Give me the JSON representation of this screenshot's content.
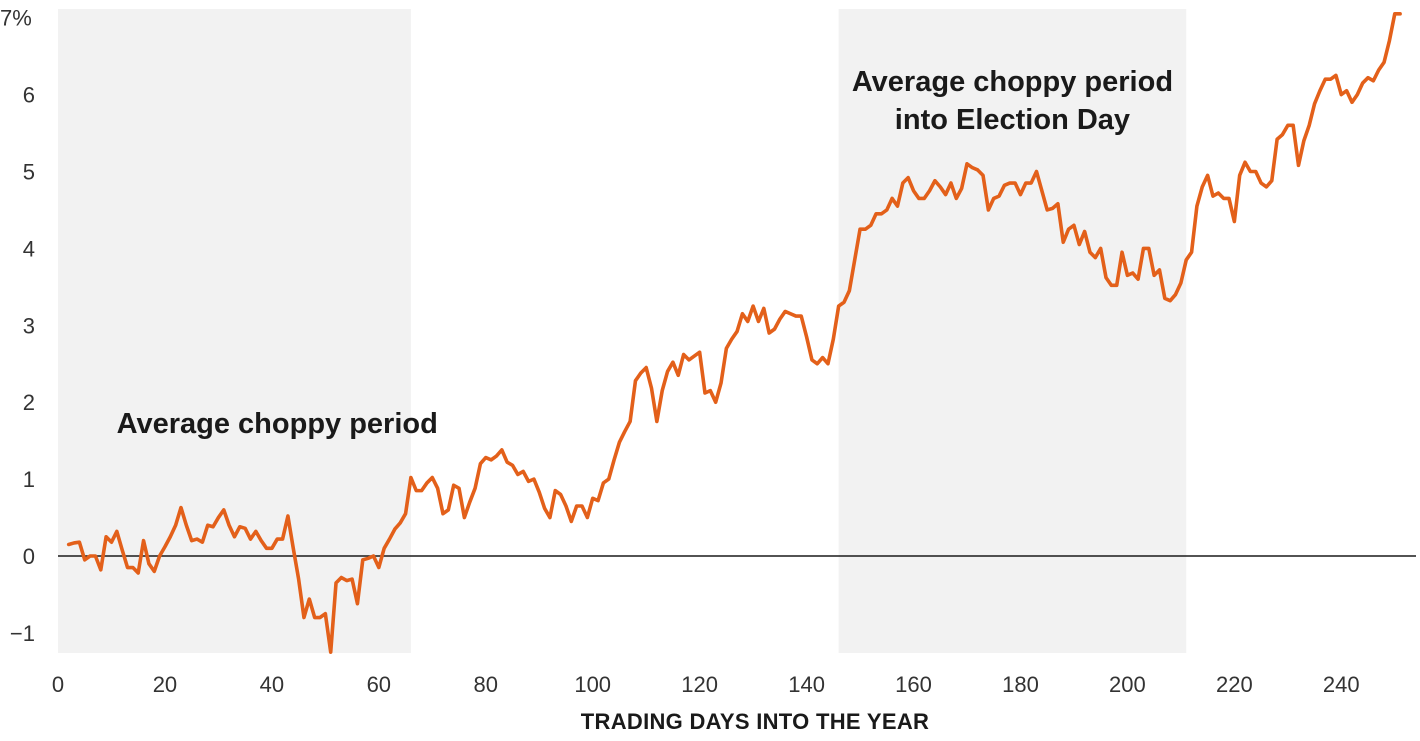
{
  "chart_data": {
    "type": "line",
    "xlabel": "TRADING DAYS INTO THE YEAR",
    "ylabel": "",
    "xlim": [
      0,
      252
    ],
    "ylim": [
      -1.25,
      7.1
    ],
    "x_ticks": [
      0,
      20,
      40,
      60,
      80,
      100,
      120,
      140,
      160,
      180,
      200,
      220,
      240
    ],
    "y_ticks": [
      {
        "value": -1,
        "label": "−1"
      },
      {
        "value": 0,
        "label": "0"
      },
      {
        "value": 1,
        "label": "1"
      },
      {
        "value": 2,
        "label": "2"
      },
      {
        "value": 3,
        "label": "3"
      },
      {
        "value": 4,
        "label": "4"
      },
      {
        "value": 5,
        "label": "5"
      },
      {
        "value": 6,
        "label": "6"
      },
      {
        "value": 7,
        "label": "7%"
      }
    ],
    "line_color": "#e3601a",
    "shade_color": "#f2f2f2",
    "shaded_periods": [
      {
        "x0": 0,
        "x1": 66,
        "label_lines": [
          "Average choppy period"
        ],
        "label_x": 41,
        "label_y": 1.6
      },
      {
        "x0": 146,
        "x1": 211,
        "label_lines": [
          "Average choppy period",
          "into Election Day"
        ],
        "label_x": 178.5,
        "label_y": 6.05
      }
    ],
    "series": [
      {
        "x": [
          2,
          3,
          4,
          5,
          6,
          7,
          8,
          9,
          10,
          11,
          12,
          13,
          14,
          15,
          16,
          17,
          18,
          19,
          20,
          21,
          22,
          23,
          24,
          25,
          26,
          27,
          28,
          29,
          30,
          31,
          32,
          33,
          34,
          35,
          36,
          37,
          38,
          39,
          40,
          41,
          42,
          43,
          44,
          45,
          46,
          47,
          48,
          49,
          50,
          51,
          52,
          53,
          54,
          55,
          56,
          57,
          58,
          59,
          60,
          61,
          62,
          63,
          64,
          65,
          66,
          67,
          68,
          69,
          70,
          71,
          72,
          73,
          74,
          75,
          76,
          77,
          78,
          79,
          80,
          81,
          82,
          83,
          84,
          85,
          86,
          87,
          88,
          89,
          90,
          91,
          92,
          93,
          94,
          95,
          96,
          97,
          98,
          99,
          100,
          101,
          102,
          103,
          104,
          105,
          106,
          107,
          108,
          109,
          110,
          111,
          112,
          113,
          114,
          115,
          116,
          117,
          118,
          119,
          120,
          121,
          122,
          123,
          124,
          125,
          126,
          127,
          128,
          129,
          130,
          131,
          132,
          133,
          134,
          135,
          136,
          137,
          138,
          139,
          140,
          141,
          142,
          143,
          144,
          145,
          146,
          147,
          148,
          149,
          150,
          151,
          152,
          153,
          154,
          155,
          156,
          157,
          158,
          159,
          160,
          161,
          162,
          163,
          164,
          165,
          166,
          167,
          168,
          169,
          170,
          171,
          172,
          173,
          174,
          175,
          176,
          177,
          178,
          179,
          180,
          181,
          182,
          183,
          184,
          185,
          186,
          187,
          188,
          189,
          190,
          191,
          192,
          193,
          194,
          195,
          196,
          197,
          198,
          199,
          200,
          201,
          202,
          203,
          204,
          205,
          206,
          207,
          208,
          209,
          210,
          211,
          212,
          213,
          214,
          215,
          216,
          217,
          218,
          219,
          220,
          221,
          222,
          223,
          224,
          225,
          226,
          227,
          228,
          229,
          230,
          231,
          232,
          233,
          234,
          235,
          236,
          237,
          238,
          239,
          240,
          241,
          242,
          243,
          244,
          245,
          246,
          247,
          248,
          249,
          250,
          251
        ],
        "values": [
          0.15,
          0.17,
          0.18,
          -0.05,
          0.0,
          0.0,
          -0.18,
          0.25,
          0.18,
          0.32,
          0.08,
          -0.15,
          -0.15,
          -0.22,
          0.2,
          -0.1,
          -0.2,
          0.0,
          0.12,
          0.25,
          0.4,
          0.63,
          0.4,
          0.2,
          0.22,
          0.18,
          0.4,
          0.38,
          0.5,
          0.6,
          0.4,
          0.25,
          0.38,
          0.36,
          0.22,
          0.32,
          0.2,
          0.1,
          0.1,
          0.22,
          0.22,
          0.52,
          0.1,
          -0.3,
          -0.8,
          -0.56,
          -0.8,
          -0.8,
          -0.75,
          -1.25,
          -0.35,
          -0.28,
          -0.32,
          -0.3,
          -0.62,
          -0.05,
          -0.03,
          0.0,
          -0.15,
          0.1,
          0.22,
          0.35,
          0.43,
          0.55,
          1.02,
          0.85,
          0.85,
          0.95,
          1.02,
          0.88,
          0.55,
          0.6,
          0.92,
          0.88,
          0.5,
          0.7,
          0.88,
          1.2,
          1.28,
          1.25,
          1.3,
          1.38,
          1.22,
          1.18,
          1.06,
          1.1,
          0.97,
          1.0,
          0.83,
          0.62,
          0.5,
          0.85,
          0.8,
          0.65,
          0.45,
          0.65,
          0.65,
          0.5,
          0.75,
          0.72,
          0.95,
          1.0,
          1.25,
          1.48,
          1.62,
          1.75,
          2.28,
          2.38,
          2.45,
          2.18,
          1.75,
          2.15,
          2.4,
          2.52,
          2.35,
          2.62,
          2.55,
          2.6,
          2.65,
          2.12,
          2.15,
          2.0,
          2.25,
          2.7,
          2.82,
          2.92,
          3.15,
          3.05,
          3.25,
          3.05,
          3.22,
          2.9,
          2.95,
          3.08,
          3.18,
          3.15,
          3.12,
          3.12,
          2.85,
          2.55,
          2.5,
          2.58,
          2.5,
          2.82,
          3.25,
          3.3,
          3.45,
          3.85,
          4.25,
          4.25,
          4.3,
          4.45,
          4.45,
          4.5,
          4.65,
          4.55,
          4.85,
          4.92,
          4.75,
          4.65,
          4.65,
          4.75,
          4.88,
          4.8,
          4.7,
          4.85,
          4.65,
          4.78,
          5.1,
          5.05,
          5.02,
          4.95,
          4.5,
          4.65,
          4.68,
          4.82,
          4.85,
          4.85,
          4.7,
          4.85,
          4.85,
          5.0,
          4.75,
          4.5,
          4.52,
          4.58,
          4.08,
          4.25,
          4.3,
          4.05,
          4.22,
          3.95,
          3.88,
          4.0,
          3.62,
          3.52,
          3.52,
          3.95,
          3.65,
          3.68,
          3.6,
          4.0,
          4.0,
          3.65,
          3.72,
          3.35,
          3.32,
          3.4,
          3.55,
          3.85,
          3.95,
          4.55,
          4.8,
          4.95,
          4.68,
          4.72,
          4.65,
          4.65,
          4.35,
          4.95,
          5.12,
          5.0,
          5.0,
          4.85,
          4.8,
          4.88,
          5.42,
          5.48,
          5.6,
          5.6,
          5.08,
          5.4,
          5.6,
          5.88,
          6.05,
          6.2,
          6.2,
          6.25,
          6.0,
          6.05,
          5.9,
          6.0,
          6.15,
          6.22,
          6.18,
          6.32,
          6.42,
          6.7,
          7.05,
          7.05
        ]
      }
    ]
  }
}
